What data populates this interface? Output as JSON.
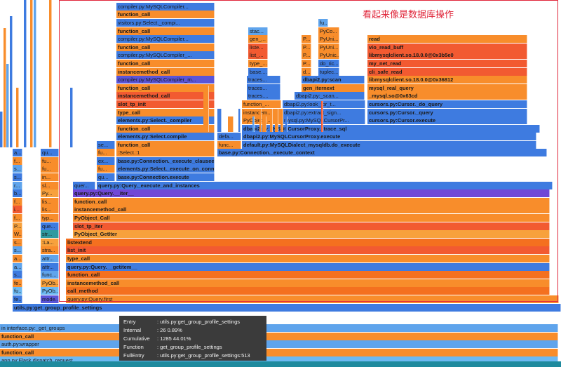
{
  "annotation": "看起来像是数据库操作",
  "tooltip": {
    "entry_label": "Entry",
    "entry_value": ": utils.py:get_group_profile_settings",
    "internal_label": "Internal",
    "internal_value": ": 26  0.89%",
    "cumulative_label": "Cumulative",
    "cumulative_value": ": 1285  44.01%",
    "function_label": "Function",
    "function_value": ": get_group_profile_settings",
    "fullentry_label": "FullEntry",
    "fullentry_value": ": utils.py:get_group_profile_settings:513"
  },
  "frames": [
    [
      "app.py:Flask.dispatch_request",
      0,
      8,
      796,
      "sky",
      0
    ],
    [
      "function_call",
      0,
      8,
      796,
      "orange",
      1
    ],
    [
      "auth.py:wrapper",
      0,
      8,
      796,
      "lblue",
      0
    ],
    [
      "function_call",
      0,
      8,
      796,
      "orange",
      1
    ],
    [
      "interface.py:get_groups",
      0,
      8,
      796,
      "lblue",
      0
    ],
    [
      "interface.py:_get_groups",
      8,
      8,
      788,
      "lblue",
      0
    ],
    [
      "utils.py:get_group_profile_settings",
      18,
      13,
      782,
      "blue",
      1
    ],
    [
      "fe...",
      18,
      18,
      14,
      "blue",
      0
    ],
    [
      "mode...",
      58,
      18,
      26,
      "purple",
      0
    ],
    [
      "query.py:Query.first",
      94,
      18,
      703,
      "orange",
      0
    ],
    [
      "fu...",
      18,
      17,
      14,
      "sky",
      0
    ],
    [
      "PyOb...",
      58,
      17,
      26,
      "sky",
      0
    ],
    [
      "call_method",
      94,
      17,
      690,
      "dorange",
      1
    ],
    [
      "fe...",
      18,
      16,
      14,
      "orange",
      0
    ],
    [
      "PyOb...",
      58,
      16,
      26,
      "lorange",
      0
    ],
    [
      "instancemethod_call",
      94,
      16,
      690,
      "orange",
      1
    ],
    [
      "s...",
      18,
      15,
      14,
      "blue",
      0
    ],
    [
      "func...",
      58,
      15,
      26,
      "lblue",
      0
    ],
    [
      "function_call",
      94,
      15,
      690,
      "dorange",
      1
    ],
    [
      "a...",
      18,
      14,
      14,
      "lblue",
      0
    ],
    [
      "attr...",
      58,
      14,
      26,
      "blue",
      0
    ],
    [
      "query.py:Query.__getitem__",
      94,
      14,
      690,
      "blue",
      1
    ],
    [
      "a...",
      18,
      13,
      14,
      "orange",
      0
    ],
    [
      "attr...",
      58,
      13,
      26,
      "lblue",
      0
    ],
    [
      "type_call",
      94,
      13,
      690,
      "orange",
      1
    ],
    [
      "s...",
      18,
      12,
      14,
      "lblue",
      0
    ],
    [
      "stra...",
      58,
      12,
      26,
      "orange",
      0
    ],
    [
      "list_init",
      94,
      12,
      690,
      "red",
      1
    ],
    [
      "s...",
      18,
      11,
      14,
      "orange",
      0
    ],
    [
      ":La...",
      58,
      11,
      26,
      "lorange",
      0
    ],
    [
      "listextend",
      94,
      11,
      690,
      "dorange",
      1
    ],
    [
      "W...",
      18,
      10,
      14,
      "orange",
      0
    ],
    [
      "str...",
      58,
      10,
      26,
      "teal",
      0
    ],
    [
      "PyObject_GetIter",
      104,
      10,
      680,
      "lorange",
      1
    ],
    [
      "P...",
      18,
      9,
      14,
      "lorange",
      0
    ],
    [
      "que...",
      58,
      9,
      26,
      "blue",
      0
    ],
    [
      "slot_tp_iter",
      104,
      9,
      680,
      "red",
      1
    ],
    [
      "f...",
      18,
      8,
      14,
      "orange",
      0
    ],
    [
      "typ...",
      58,
      8,
      26,
      "orange",
      0
    ],
    [
      "PyObject_Call",
      104,
      8,
      680,
      "orange",
      1
    ],
    [
      "i...",
      18,
      7,
      14,
      "red",
      0
    ],
    [
      "lis...",
      58,
      7,
      26,
      "orange",
      0
    ],
    [
      "instancemethod_call",
      104,
      7,
      680,
      "orange",
      1
    ],
    [
      "f...",
      18,
      6,
      14,
      "orange",
      0
    ],
    [
      "lis...",
      58,
      6,
      26,
      "orange",
      0
    ],
    [
      "function_call",
      104,
      6,
      680,
      "orange",
      1
    ],
    [
      "b...",
      18,
      5,
      14,
      "blue",
      0
    ],
    [
      "Py...",
      58,
      5,
      26,
      "lorange",
      0
    ],
    [
      "query.py:Query.__iter__",
      104,
      5,
      680,
      "violet",
      1
    ],
    [
      "r...",
      18,
      4,
      14,
      "lblue",
      0
    ],
    [
      "sl...",
      58,
      4,
      26,
      "orange",
      0
    ],
    [
      "quer...",
      104,
      4,
      32,
      "blue",
      0
    ],
    [
      "query.py:Query._execute_and_instances",
      138,
      4,
      650,
      "blue",
      1
    ],
    [
      "s...",
      18,
      3,
      14,
      "blue",
      0
    ],
    [
      "in...",
      58,
      3,
      26,
      "orange",
      0
    ],
    [
      "qu...",
      138,
      3,
      26,
      "blue",
      0
    ],
    [
      "base.py:Connection.execute",
      166,
      3,
      140,
      "blue",
      1
    ],
    [
      "s...",
      18,
      2,
      14,
      "lblue",
      0
    ],
    [
      "fu...",
      58,
      2,
      26,
      "orange",
      0
    ],
    [
      "fu...",
      138,
      2,
      26,
      "orange",
      0
    ],
    [
      "elements.py:Select._execute_on_connection",
      166,
      2,
      140,
      "blue",
      1
    ],
    [
      "f...",
      18,
      1,
      14,
      "orange",
      0
    ],
    [
      "fu...",
      58,
      1,
      26,
      "orange",
      0
    ],
    [
      "ex...",
      138,
      1,
      26,
      "blue",
      0
    ],
    [
      "base.py:Connection._execute_clauseelement",
      166,
      1,
      140,
      "blue",
      1
    ],
    [
      "a...",
      18,
      0,
      14,
      "blue",
      0
    ],
    [
      "qu...",
      58,
      0,
      26,
      "blue",
      0
    ],
    [
      "fu...",
      138,
      0,
      26,
      "orange",
      0
    ],
    [
      ":Select.:1",
      166,
      0,
      140,
      "orange",
      0
    ],
    [
      "base.py:Connection._execute_context",
      310,
      0,
      470,
      "blue",
      1
    ]
  ],
  "upper_frames": [
    [
      "function_call",
      166,
      0,
      140,
      "orange",
      1
    ],
    [
      "defa...",
      310,
      0,
      34,
      "sky",
      0
    ],
    [
      "default.py:MySQLDialect_mysqldb.do_execute",
      345,
      0,
      420,
      "blue",
      1
    ],
    [
      "se...",
      138,
      0,
      26,
      "blue",
      0
    ],
    [
      "func...",
      310,
      0,
      34,
      "orange",
      0
    ],
    [
      "elements.py:Select.compile",
      166,
      1,
      140,
      "blue",
      1
    ],
    [
      "defa...",
      310,
      1,
      34,
      "blue",
      0
    ],
    [
      "dbapi2.py:MySQLCursorProxy.execute",
      345,
      1,
      420,
      "blue",
      1
    ],
    [
      "function_call",
      166,
      2,
      140,
      "orange",
      1
    ],
    [
      "dbapi2.py:MySQLCursorProxy._trace_sql",
      345,
      2,
      425,
      "blue",
      1
    ],
    [
      "elements.py:Select._compiler",
      166,
      3,
      140,
      "blue",
      1
    ],
    [
      "PyObject_...",
      345,
      3,
      56,
      "orange",
      0
    ],
    [
      "mysql.py:MySQLCursorPr...",
      403,
      3,
      118,
      "blue",
      0
    ],
    [
      "cursors.py:Cursor.execute",
      524,
      3,
      228,
      "blue",
      1
    ],
    [
      "type_call",
      166,
      4,
      140,
      "orange",
      1
    ],
    [
      "instancem...",
      345,
      4,
      56,
      "orange",
      0
    ],
    [
      "dbapi2.py:extract_sign...",
      403,
      4,
      118,
      "blue",
      0
    ],
    [
      "cursors.py:Cursor._query",
      524,
      4,
      228,
      "blue",
      1
    ],
    [
      "slot_tp_init",
      166,
      5,
      140,
      "red",
      1
    ],
    [
      "function_...",
      345,
      5,
      56,
      "orange",
      0
    ],
    [
      "dbapi2.py:look_for_t...",
      403,
      5,
      118,
      "blue",
      0
    ],
    [
      "cursors.py:Cursor._do_query",
      524,
      5,
      228,
      "blue",
      1
    ],
    [
      "instancemethod_call",
      166,
      6,
      140,
      "red",
      1
    ],
    [
      "traces....",
      352,
      6,
      48,
      "blue",
      0
    ],
    [
      "dbapi2.py:_scan...",
      420,
      6,
      100,
      "blue",
      0
    ],
    [
      "_mysql.so@0x63cd",
      524,
      6,
      228,
      "orange",
      1
    ],
    [
      "function_call",
      166,
      7,
      140,
      "orange",
      1
    ],
    [
      "traces...",
      352,
      7,
      48,
      "blue",
      0
    ],
    [
      "gen_iternext",
      430,
      7,
      90,
      "orange",
      1
    ],
    [
      "mysql_real_query",
      524,
      7,
      228,
      "orange",
      1
    ],
    [
      "compiler.py:MySQLCompiler_m...",
      166,
      8,
      140,
      "purple",
      0
    ],
    [
      "traces...",
      352,
      8,
      48,
      "blue",
      0
    ],
    [
      "dbapi2.py:scan",
      430,
      8,
      90,
      "blue",
      1
    ],
    [
      "libmysqlclient.so.18.0.0@0x36812",
      524,
      8,
      228,
      "orange",
      1
    ],
    [
      "instancemethod_call",
      166,
      9,
      140,
      "orange",
      1
    ],
    [
      "base....",
      354,
      9,
      28,
      "blue",
      0
    ],
    [
      "d...",
      430,
      9,
      14,
      "orange",
      0
    ],
    [
      "tuplec...",
      454,
      9,
      30,
      "blue",
      0
    ],
    [
      "cli_safe_read",
      524,
      9,
      228,
      "red",
      1
    ],
    [
      "function_call",
      166,
      10,
      140,
      "orange",
      1
    ],
    [
      "type_...",
      354,
      10,
      28,
      "orange",
      0
    ],
    [
      "P...",
      430,
      10,
      14,
      "orange",
      0
    ],
    [
      "do_ric...",
      454,
      10,
      30,
      "blue",
      0
    ],
    [
      "my_net_read",
      524,
      10,
      228,
      "red",
      1
    ],
    [
      "compiler.py:MySQLCompiler_...",
      166,
      11,
      140,
      "blue",
      0
    ],
    [
      "list_...",
      354,
      11,
      28,
      "red",
      0
    ],
    [
      "P...",
      430,
      11,
      14,
      "orange",
      0
    ],
    [
      "PyUnic...",
      454,
      11,
      30,
      "orange",
      0
    ],
    [
      "libmysqlclient.so.18.0.0@0x3b5e0",
      524,
      11,
      228,
      "red",
      1
    ],
    [
      "function_call",
      166,
      12,
      140,
      "orange",
      1
    ],
    [
      "liste...",
      354,
      12,
      28,
      "red",
      0
    ],
    [
      "P...",
      430,
      12,
      14,
      "orange",
      0
    ],
    [
      "PyUni...",
      454,
      12,
      30,
      "orange",
      0
    ],
    [
      "vio_read_buff",
      524,
      12,
      228,
      "red",
      1
    ],
    [
      "compiler.py:MySQLCompiler...",
      166,
      13,
      140,
      "blue",
      0
    ],
    [
      "gen_...",
      354,
      13,
      28,
      "orange",
      0
    ],
    [
      "P...",
      430,
      13,
      14,
      "orange",
      0
    ],
    [
      "PyUni...",
      454,
      13,
      30,
      "orange",
      0
    ],
    [
      "read",
      524,
      13,
      228,
      "orange",
      1
    ],
    [
      "function_call",
      166,
      14,
      140,
      "orange",
      1
    ],
    [
      "stac...",
      354,
      14,
      28,
      "lblue",
      0
    ],
    [
      "PyCo...",
      454,
      14,
      30,
      "orange",
      0
    ],
    [
      "visitors.py:Select._compi...",
      166,
      15,
      140,
      "blue",
      0
    ],
    [
      "fu...",
      454,
      15,
      14,
      "lblue",
      0
    ],
    [
      "function_call",
      166,
      16,
      140,
      "orange",
      1
    ],
    [
      "compiler.py:MySQLCompiler...",
      166,
      17,
      140,
      "blue",
      0
    ]
  ],
  "side_columns": [
    [
      0,
      "blue",
      6
    ],
    [
      5,
      "orange",
      20
    ],
    [
      9,
      "lblue",
      14
    ],
    [
      14,
      "blue",
      22
    ],
    [
      23,
      "orange",
      10
    ],
    [
      34,
      "blue",
      30
    ],
    [
      43,
      "orange",
      34
    ],
    [
      48,
      "lblue",
      38
    ],
    [
      70,
      "orange",
      26
    ],
    [
      100,
      "blue",
      10
    ]
  ],
  "side_ticks": [
    [
      310,
      "blue",
      6,
      3
    ],
    [
      325,
      "orange",
      8,
      2
    ],
    [
      370,
      "orange",
      2,
      3
    ],
    [
      392,
      "orange",
      5,
      3
    ],
    [
      407,
      "blue",
      3,
      2
    ],
    [
      458,
      "red",
      3,
      4
    ],
    [
      290,
      "orange",
      8,
      6
    ],
    [
      340,
      "blue",
      2,
      3
    ],
    [
      360,
      "lblue",
      2,
      2
    ],
    [
      374,
      "orange",
      6,
      2
    ],
    [
      385,
      "orange",
      4,
      3
    ],
    [
      400,
      "orange",
      4,
      3
    ]
  ]
}
